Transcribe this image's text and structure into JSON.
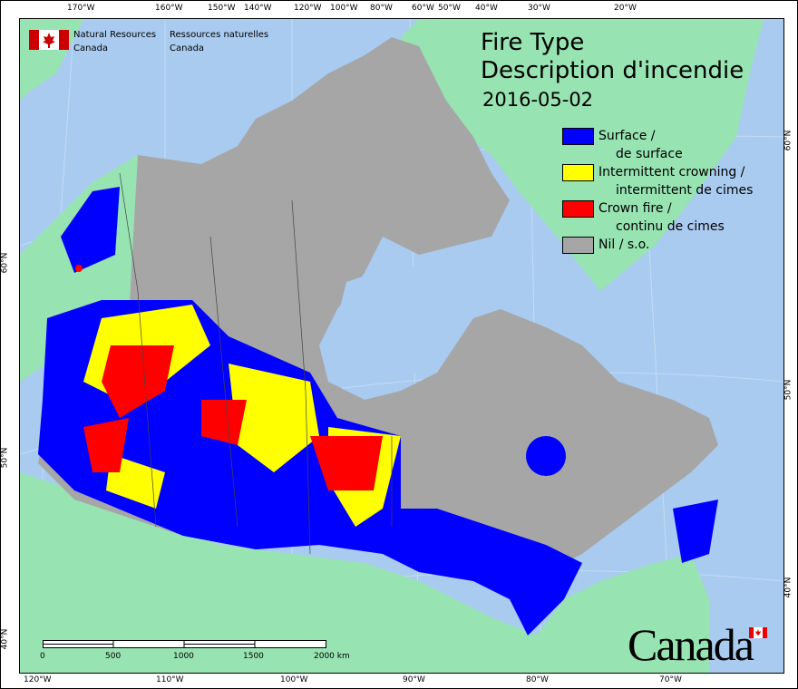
{
  "header": {
    "agency_en": [
      "Natural Resources",
      "Canada"
    ],
    "agency_fr": [
      "Ressources naturelles",
      "Canada"
    ]
  },
  "title": {
    "line1": "Fire Type",
    "line2": "Description d'incendie",
    "date": "2016-05-02"
  },
  "legend": [
    {
      "label": "Surface /",
      "sub": "de surface",
      "color": "#0000ff"
    },
    {
      "label": "Intermittent crowning /",
      "sub": "intermittent de cimes",
      "color": "#ffff00"
    },
    {
      "label": "Crown fire /",
      "sub": "continu de cimes",
      "color": "#ff0000"
    },
    {
      "label": "Nil / s.o.",
      "sub": "",
      "color": "#a6a6a6"
    }
  ],
  "axes": {
    "top": [
      "170°W",
      "160°W",
      "150°W",
      "140°W",
      "120°W",
      "100°W",
      "80°W",
      "60°W",
      "50°W",
      "40°W",
      "30°W",
      "20°W"
    ],
    "bottom": [
      "120°W",
      "110°W",
      "100°W",
      "90°W",
      "80°W",
      "70°W"
    ],
    "left": [
      "60°N",
      "50°N",
      "40°N"
    ],
    "right": [
      "60°N",
      "50°N",
      "40°N"
    ]
  },
  "scale_bar": {
    "labels": [
      "0",
      "500",
      "1000",
      "1500",
      "2000 km"
    ]
  },
  "wordmark": "Canada",
  "colors": {
    "water": "#a9cbf0",
    "foreign_land": "#97e3b1",
    "nil": "#a6a6a6",
    "surface": "#0000ff",
    "intermittent": "#ffff00",
    "crown": "#ff0000"
  }
}
